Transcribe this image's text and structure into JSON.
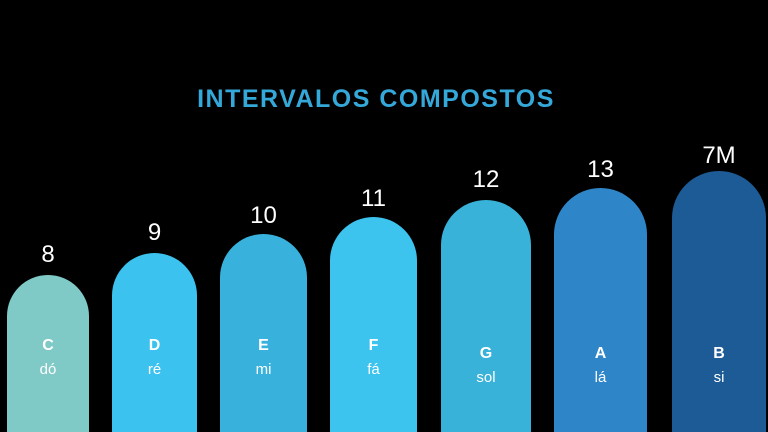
{
  "page": {
    "background": "#000000"
  },
  "title": {
    "text": "INTERVALOS COMPOSTOS",
    "color": "#35a8da"
  },
  "chart_data": {
    "type": "bar",
    "title": "INTERVALOS COMPOSTOS",
    "orientation": "vertical",
    "categories": [
      "C",
      "D",
      "E",
      "F",
      "G",
      "A",
      "B"
    ],
    "values": [
      "8",
      "9",
      "10",
      "11",
      "12",
      "13",
      "7M"
    ],
    "bars": [
      {
        "interval": "8",
        "note": "C",
        "solfege": "dó",
        "color": "#7fc9c6",
        "rank": 1
      },
      {
        "interval": "9",
        "note": "D",
        "solfege": "ré",
        "color": "#3cc2ee",
        "rank": 2
      },
      {
        "interval": "10",
        "note": "E",
        "solfege": "mi",
        "color": "#38b2dc",
        "rank": 3
      },
      {
        "interval": "11",
        "note": "F",
        "solfege": "fá",
        "color": "#3cc3ee",
        "rank": 4
      },
      {
        "interval": "12",
        "note": "G",
        "solfege": "sol",
        "color": "#38b2d9",
        "rank": 5
      },
      {
        "interval": "13",
        "note": "A",
        "solfege": "lá",
        "color": "#2e86c8",
        "rank": 6
      },
      {
        "interval": "7M",
        "note": "B",
        "solfege": "si",
        "color": "#1d5b96",
        "rank": 7
      }
    ],
    "value_label_color": "#ffffff",
    "note_label_color": "#ffffff",
    "grid": false,
    "legend": false
  }
}
